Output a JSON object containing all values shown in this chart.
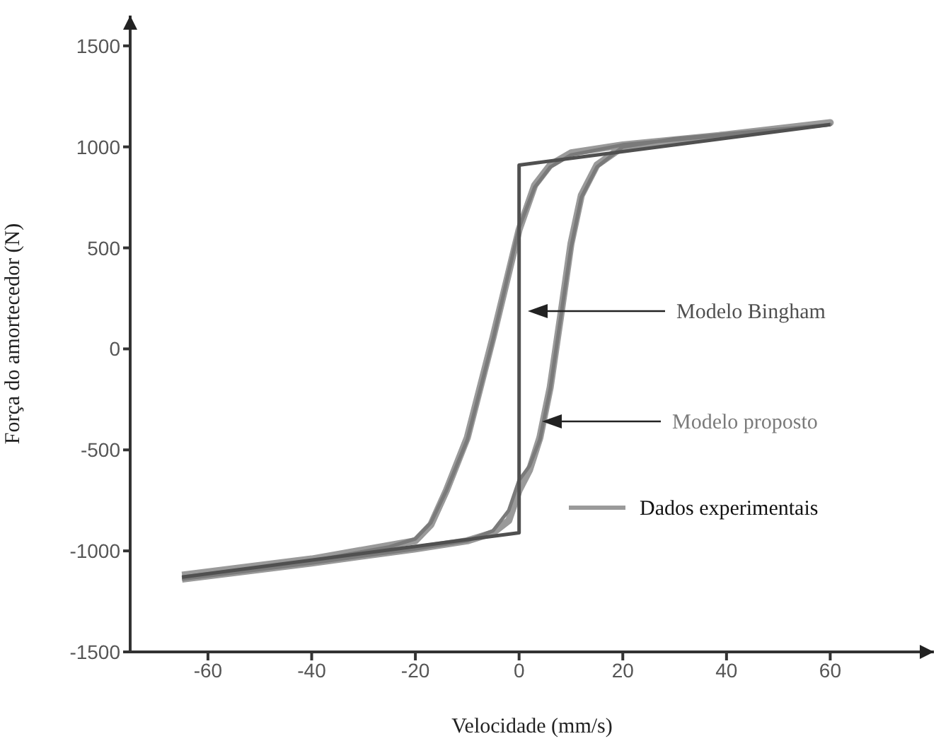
{
  "chart_data": {
    "type": "line",
    "xlabel": "Velocidade (mm/s)",
    "ylabel": "Força do amortecedor (N)",
    "xlim": [
      -75,
      80
    ],
    "xticks": [
      -60,
      -40,
      -20,
      0,
      20,
      40,
      60
    ],
    "ylim": [
      -1500,
      1650
    ],
    "yticks": [
      -1500,
      -1000,
      -500,
      0,
      500,
      1000,
      1500
    ],
    "grid": false,
    "series": [
      {
        "name": "Dados experimentais",
        "color": "#9a9a9a",
        "x": [
          -65,
          -40,
          -20,
          -17,
          -14,
          -10,
          -5,
          0,
          3,
          6,
          10,
          20,
          40,
          60,
          40,
          20,
          15,
          12,
          10,
          8,
          6,
          4,
          2,
          0,
          -2,
          -5,
          -10,
          -20,
          -40,
          -65
        ],
        "values": [
          -1120,
          -1040,
          -950,
          -870,
          -700,
          -440,
          60,
          590,
          810,
          910,
          970,
          1010,
          1060,
          1120,
          1060,
          1000,
          910,
          760,
          520,
          160,
          -190,
          -440,
          -600,
          -700,
          -850,
          -910,
          -950,
          -990,
          -1060,
          -1140
        ]
      },
      {
        "name": "Modelo proposto",
        "color": "#7a7a7a",
        "x": [
          -65,
          -40,
          -25,
          -20,
          -17,
          -14,
          -10,
          -5,
          0,
          3,
          6,
          10,
          20,
          60,
          30,
          20,
          15,
          12,
          10,
          8,
          6,
          4,
          2,
          0,
          -2,
          -5,
          -10,
          -20,
          -40,
          -65
        ],
        "values": [
          -1130,
          -1050,
          -980,
          -940,
          -860,
          -700,
          -450,
          50,
          600,
          800,
          900,
          960,
          1010,
          1110,
          1040,
          1000,
          900,
          750,
          500,
          150,
          -200,
          -450,
          -580,
          -650,
          -800,
          -900,
          -950,
          -990,
          -1060,
          -1140
        ]
      },
      {
        "name": "Modelo Bingham",
        "color": "#505050",
        "x": [
          -65,
          0,
          0,
          60
        ],
        "values": [
          -1130,
          -910,
          910,
          1110
        ]
      }
    ]
  }
}
